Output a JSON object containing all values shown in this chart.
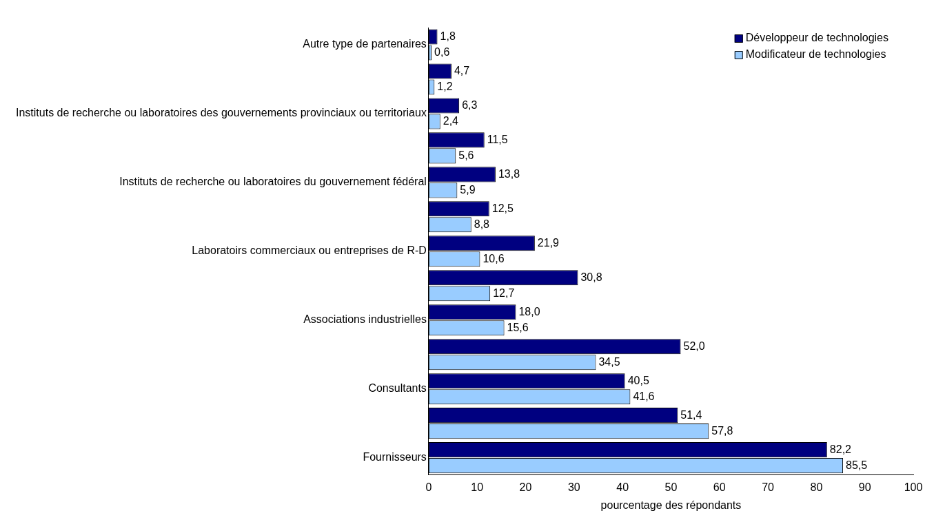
{
  "chart_data": {
    "type": "bar",
    "orientation": "horizontal",
    "xlabel": "pourcentage des répondants",
    "categories": [
      "Autre type de partenaires",
      null,
      "Instituts de recherche ou laboratoires des gouvernements provinciaux ou territoriaux",
      null,
      "Instituts de recherche ou laboratoires du gouvernement fédéral",
      null,
      "Laboratoirs commerciaux ou entreprises de R-D",
      null,
      "Associations industrielles",
      null,
      "Consultants",
      null,
      "Fournisseurs"
    ],
    "series": [
      {
        "name": "Développeur de technologies",
        "color": "#000080",
        "values": [
          1.8,
          4.7,
          6.3,
          11.5,
          13.8,
          12.5,
          21.9,
          30.8,
          18.0,
          52.0,
          40.5,
          51.4,
          82.2
        ],
        "value_labels": [
          "1,8",
          "4,7",
          "6,3",
          "11,5",
          "13,8",
          "12,5",
          "21,9",
          "30,8",
          "18,0",
          "52,0",
          "40,5",
          "51,4",
          "82,2"
        ]
      },
      {
        "name": "Modificateur de technologies",
        "color": "#99ccff",
        "values": [
          0.6,
          1.2,
          2.4,
          5.6,
          5.9,
          8.8,
          10.6,
          12.7,
          15.6,
          34.5,
          41.6,
          57.8,
          85.5
        ],
        "value_labels": [
          "0,6",
          "1,2",
          "2,4",
          "5,6",
          "5,9",
          "8,8",
          "10,6",
          "12,7",
          "15,6",
          "34,5",
          "41,6",
          "57,8",
          "85,5"
        ]
      }
    ],
    "xlim": [
      0,
      100
    ],
    "xticks": [
      0,
      10,
      20,
      30,
      40,
      50,
      60,
      70,
      80,
      90,
      100
    ],
    "grid": false,
    "legend": "top right"
  }
}
